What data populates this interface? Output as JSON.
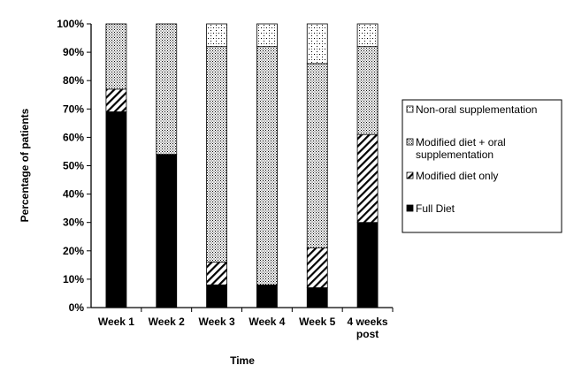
{
  "chart_data": {
    "type": "bar",
    "stacked": true,
    "percent_stacked": true,
    "categories": [
      [
        "Week 1"
      ],
      [
        "Week 2"
      ],
      [
        "Week 3"
      ],
      [
        "Week 4"
      ],
      [
        "Week 5"
      ],
      [
        "4 weeks",
        "post"
      ]
    ],
    "series": [
      {
        "name": "Full Diet",
        "pattern": "solid",
        "values": [
          69,
          54,
          8,
          8,
          7,
          30
        ]
      },
      {
        "name": "Modified diet only",
        "pattern": "diagonal",
        "values": [
          8,
          0,
          8,
          0,
          14,
          31
        ]
      },
      {
        "name": "Modified diet + oral supplementation",
        "pattern": "dense-dots",
        "values": [
          23,
          46,
          76,
          84,
          65,
          31
        ]
      },
      {
        "name": "Non-oral supplementation",
        "pattern": "sparse-dots",
        "values": [
          0,
          0,
          8,
          8,
          14,
          8
        ]
      }
    ],
    "legend_order": [
      3,
      2,
      1,
      0
    ],
    "legend_labels": [
      [
        "Non-oral supplementation"
      ],
      [
        "Modified diet + oral",
        "supplementation"
      ],
      [
        "Modified diet only"
      ],
      [
        "Full Diet"
      ]
    ],
    "yticks": [
      "0%",
      "10%",
      "20%",
      "30%",
      "40%",
      "50%",
      "60%",
      "70%",
      "80%",
      "90%",
      "100%"
    ],
    "ylim": [
      0,
      100
    ],
    "xlabel": "Time",
    "ylabel": "Percentage of patients",
    "legend_position": "right",
    "grid": false
  }
}
